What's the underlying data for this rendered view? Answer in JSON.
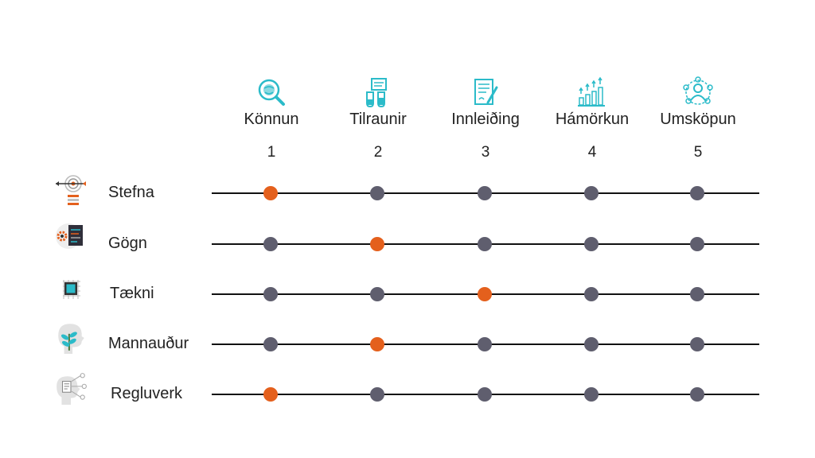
{
  "stages": [
    {
      "label": "Könnun",
      "number": "1",
      "icon": "magnifier-globe-icon"
    },
    {
      "label": "Tilraunir",
      "number": "2",
      "icon": "lab-flask-icon"
    },
    {
      "label": "Innleiðing",
      "number": "3",
      "icon": "document-pen-icon"
    },
    {
      "label": "Hámörkun",
      "number": "4",
      "icon": "growth-chart-icon"
    },
    {
      "label": "Umsköpun",
      "number": "5",
      "icon": "people-network-icon"
    }
  ],
  "dimensions": [
    {
      "label": "Stefna",
      "icon": "target-arrow-icon",
      "level": 1
    },
    {
      "label": "Gögn",
      "icon": "gear-code-icon",
      "level": 2
    },
    {
      "label": "Tækni",
      "icon": "chip-icon",
      "level": 3
    },
    {
      "label": "Mannauður",
      "icon": "head-plant-icon",
      "level": 2
    },
    {
      "label": "Regluverk",
      "icon": "head-document-icon",
      "level": 1
    }
  ],
  "colors": {
    "active": "#e4601d",
    "inactive": "#5f5e6e",
    "accent": "#2bbbc9",
    "line": "#111111"
  }
}
